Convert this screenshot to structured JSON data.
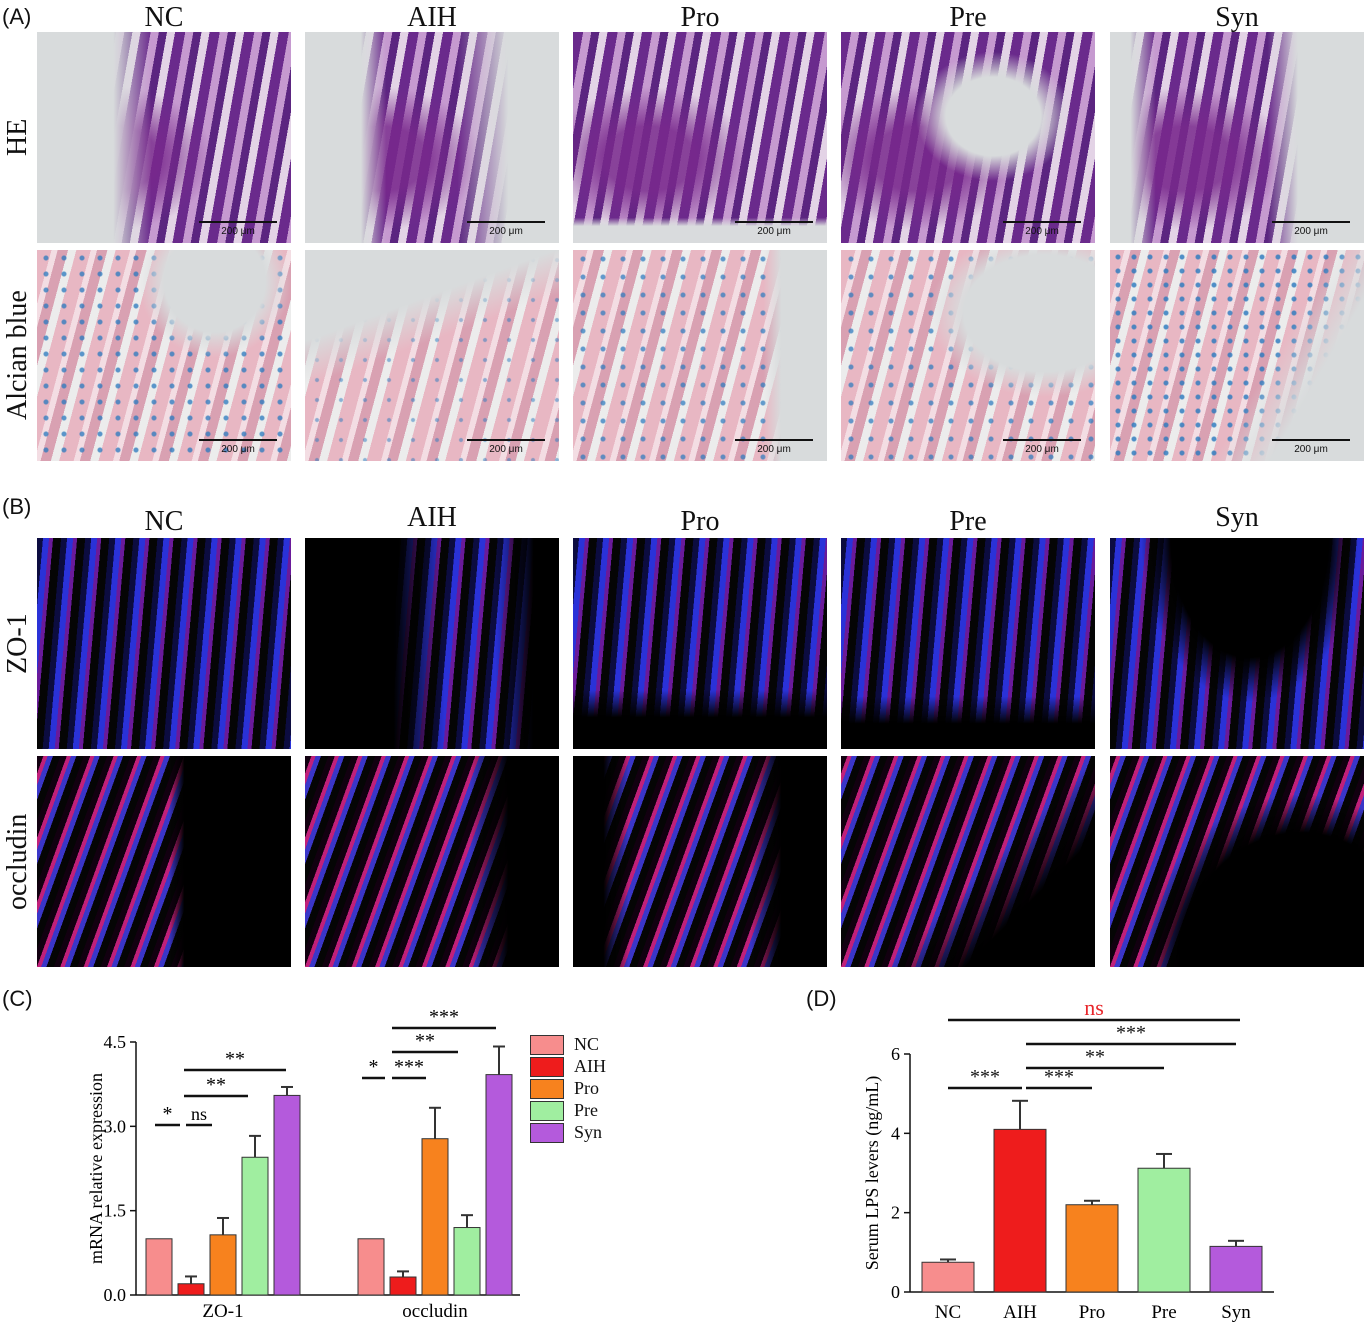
{
  "panels": {
    "A": {
      "label": "(A)",
      "columns": [
        "NC",
        "AIH",
        "Pro",
        "Pre",
        "Syn"
      ],
      "rows": [
        "HE",
        "Alcian blue"
      ],
      "scale_bar": "200 μm"
    },
    "B": {
      "label": "(B)",
      "columns": [
        "NC",
        "AIH",
        "Pro",
        "Pre",
        "Syn"
      ],
      "rows": [
        "ZO-1",
        "occludin"
      ]
    },
    "C": {
      "label": "(C)"
    },
    "D": {
      "label": "(D)"
    }
  },
  "colors": {
    "NC": "#f78d8d",
    "AIH": "#ee1c1c",
    "Pro": "#f7821e",
    "Pre": "#a0eea0",
    "Syn": "#b45adc",
    "ns_red": "#e8262b"
  },
  "chart_data": [
    {
      "type": "bar",
      "panel": "C",
      "ylabel": "mRNA relative expression",
      "ylim": [
        0,
        4.5
      ],
      "yticks": [
        "0.0",
        "1.5",
        "3.0",
        "4.5"
      ],
      "categories": [
        "ZO-1",
        "occludin"
      ],
      "series": [
        {
          "name": "NC",
          "values": [
            1.0,
            1.0
          ],
          "errors": [
            0,
            0
          ]
        },
        {
          "name": "AIH",
          "values": [
            0.2,
            0.32
          ],
          "errors": [
            0.13,
            0.1
          ]
        },
        {
          "name": "Pro",
          "values": [
            1.07,
            2.78
          ],
          "errors": [
            0.3,
            0.55
          ]
        },
        {
          "name": "Pre",
          "values": [
            2.45,
            1.2
          ],
          "errors": [
            0.38,
            0.22
          ]
        },
        {
          "name": "Syn",
          "values": [
            3.55,
            3.92
          ],
          "errors": [
            0.15,
            0.5
          ]
        }
      ],
      "legend": "right",
      "significance": [
        {
          "group": "ZO-1",
          "from": "NC",
          "to": "AIH",
          "label": "*"
        },
        {
          "group": "ZO-1",
          "from": "AIH",
          "to": "Pro",
          "label": "ns"
        },
        {
          "group": "ZO-1",
          "from": "AIH",
          "to": "Pre",
          "label": "**"
        },
        {
          "group": "ZO-1",
          "from": "AIH",
          "to": "Syn",
          "label": "**"
        },
        {
          "group": "occludin",
          "from": "NC",
          "to": "AIH",
          "label": "*"
        },
        {
          "group": "occludin",
          "from": "AIH",
          "to": "Pro",
          "label": "***"
        },
        {
          "group": "occludin",
          "from": "AIH",
          "to": "Pre",
          "label": "**"
        },
        {
          "group": "occludin",
          "from": "AIH",
          "to": "Syn",
          "label": "***"
        }
      ]
    },
    {
      "type": "bar",
      "panel": "D",
      "ylabel": "Serum LPS levers (ng/mL)",
      "ylim": [
        0,
        6
      ],
      "yticks": [
        "0",
        "2",
        "4",
        "6"
      ],
      "categories": [
        "NC",
        "AIH",
        "Pro",
        "Pre",
        "Syn"
      ],
      "values": [
        0.75,
        4.1,
        2.2,
        3.12,
        1.15
      ],
      "errors": [
        0.07,
        0.72,
        0.1,
        0.36,
        0.14
      ],
      "significance": [
        {
          "from": "NC",
          "to": "AIH",
          "label": "***"
        },
        {
          "from": "AIH",
          "to": "Pro",
          "label": "***"
        },
        {
          "from": "AIH",
          "to": "Pre",
          "label": "**"
        },
        {
          "from": "AIH",
          "to": "Syn",
          "label": "***"
        },
        {
          "from": "NC",
          "to": "Syn",
          "label": "ns",
          "color": "red"
        }
      ]
    }
  ]
}
